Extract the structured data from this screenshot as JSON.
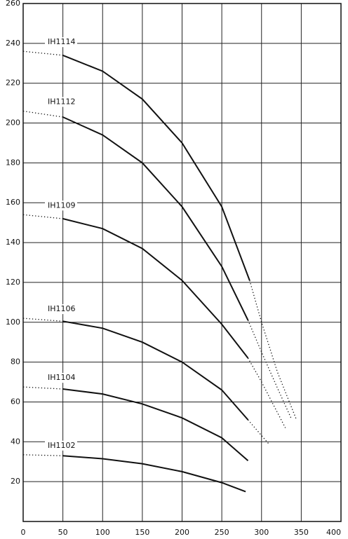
{
  "chart_data": {
    "type": "line",
    "xlim": [
      0,
      400
    ],
    "xticks": [
      0,
      50,
      100,
      150,
      200,
      250,
      300,
      350,
      400
    ],
    "ylim": [
      0,
      260
    ],
    "yticks": [
      20,
      40,
      60,
      80,
      100,
      120,
      140,
      160,
      180,
      200,
      220,
      240,
      260
    ],
    "grid": true,
    "color": "#111111",
    "series": [
      {
        "name": "IH1114",
        "segments": [
          {
            "style": "dotted",
            "x": [
              0,
              50
            ],
            "values": [
              236,
              234
            ]
          },
          {
            "style": "solid",
            "x": [
              50,
              100,
              150,
              200,
              250,
              285
            ],
            "values": [
              234,
              226,
              212,
              190,
              158,
              121
            ]
          },
          {
            "style": "dotted",
            "x": [
              285,
              300,
              320,
              344
            ],
            "values": [
              121,
              100,
              75,
              51
            ]
          }
        ]
      },
      {
        "name": "IH1112",
        "segments": [
          {
            "style": "dotted",
            "x": [
              0,
              50
            ],
            "values": [
              206,
              203
            ]
          },
          {
            "style": "solid",
            "x": [
              50,
              100,
              150,
              200,
              250,
              283
            ],
            "values": [
              203,
              194,
              180,
              158,
              128,
              101
            ]
          },
          {
            "style": "dotted",
            "x": [
              283,
              300,
              320,
              337
            ],
            "values": [
              101,
              85,
              67,
              52
            ]
          }
        ]
      },
      {
        "name": "IH1109",
        "segments": [
          {
            "style": "dotted",
            "x": [
              0,
              50
            ],
            "values": [
              154,
              152
            ]
          },
          {
            "style": "solid",
            "x": [
              50,
              100,
              150,
              200,
              250,
              283
            ],
            "values": [
              152,
              147,
              137,
              121,
              99,
              82
            ]
          },
          {
            "style": "dotted",
            "x": [
              283,
              300,
              330
            ],
            "values": [
              82,
              70,
              47
            ]
          }
        ]
      },
      {
        "name": "IH1106",
        "segments": [
          {
            "style": "dotted",
            "x": [
              0,
              50
            ],
            "values": [
              102,
              100.5
            ]
          },
          {
            "style": "solid",
            "x": [
              50,
              100,
              150,
              200,
              250,
              283
            ],
            "values": [
              100.5,
              97,
              90,
              80,
              66,
              51
            ]
          },
          {
            "style": "dotted",
            "x": [
              283,
              309
            ],
            "values": [
              51,
              39
            ]
          }
        ]
      },
      {
        "name": "IH1104",
        "segments": [
          {
            "style": "dotted",
            "x": [
              0,
              50
            ],
            "values": [
              67.5,
              66.5
            ]
          },
          {
            "style": "solid",
            "x": [
              50,
              100,
              150,
              200,
              250,
              283
            ],
            "values": [
              66.5,
              64,
              59,
              52,
              42,
              30.5
            ]
          }
        ]
      },
      {
        "name": "IH1102",
        "segments": [
          {
            "style": "dotted",
            "x": [
              0,
              50
            ],
            "values": [
              33.5,
              33
            ]
          },
          {
            "style": "solid",
            "x": [
              50,
              100,
              150,
              200,
              250,
              280
            ],
            "values": [
              33,
              31.5,
              29,
              25,
              19.5,
              15
            ]
          }
        ]
      }
    ]
  }
}
